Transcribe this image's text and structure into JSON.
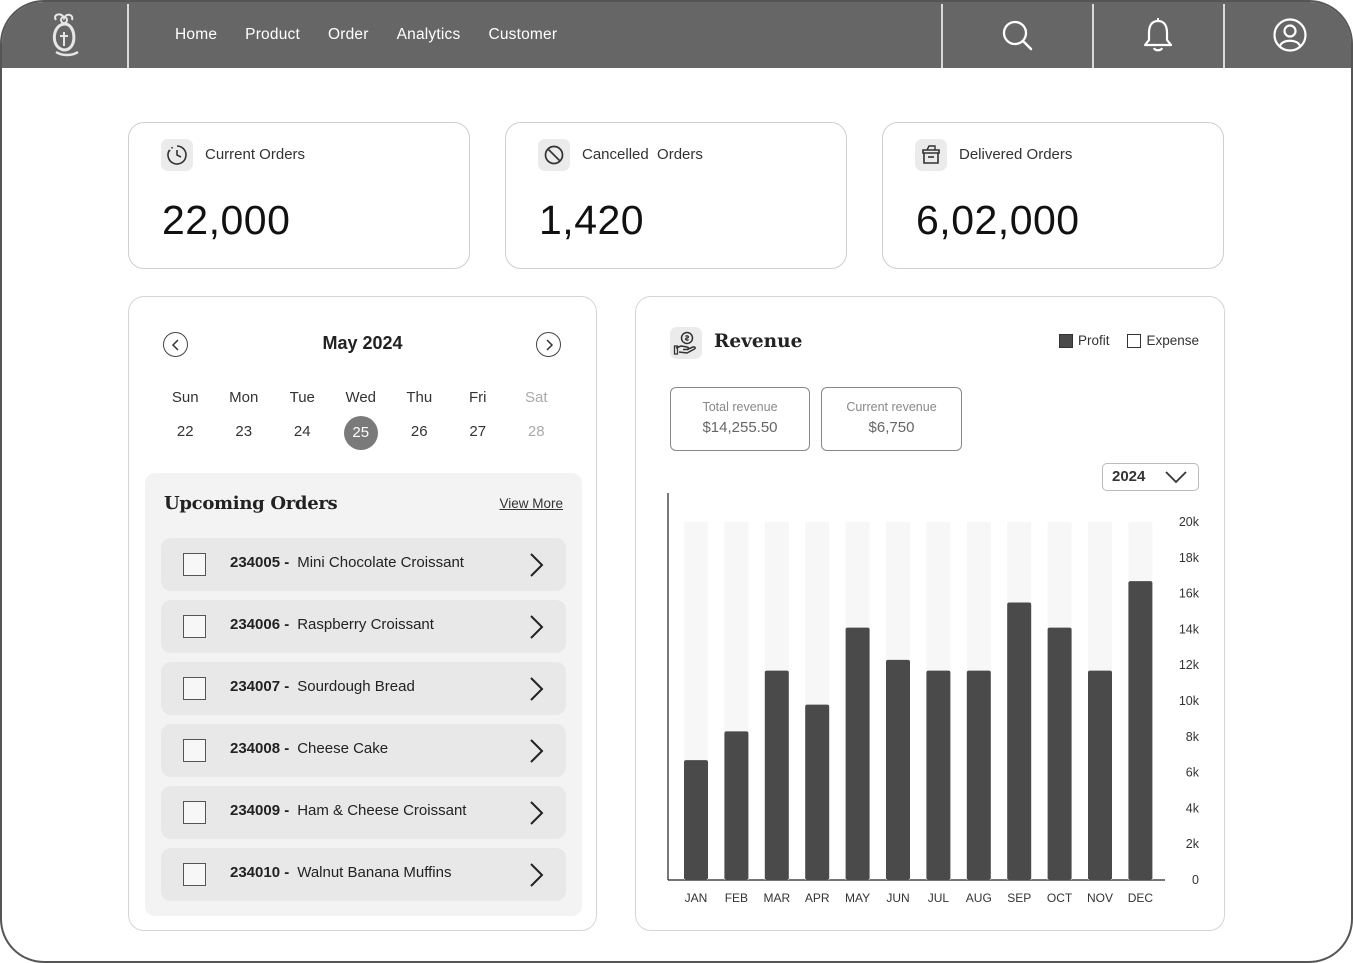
{
  "nav": {
    "links": [
      "Home",
      "Product",
      "Order",
      "Analytics",
      "Customer"
    ],
    "icons": [
      "logo-icon",
      "search-icon",
      "bell-icon",
      "user-icon"
    ],
    "bg_color": "#666666"
  },
  "stats": [
    {
      "label": "Current Orders",
      "value": "22,000",
      "icon": "clock-icon"
    },
    {
      "label": "Cancelled  Orders",
      "value": "1,420",
      "icon": "cancel-icon"
    },
    {
      "label": "Delivered Orders",
      "value": "6,02,000",
      "icon": "box-icon"
    }
  ],
  "calendar": {
    "month": "May 2024",
    "weekdays": [
      "Sun",
      "Mon",
      "Tue",
      "Wed",
      "Thu",
      "Fri",
      "Sat"
    ],
    "dates": [
      "22",
      "23",
      "24",
      "25",
      "26",
      "27",
      "28"
    ],
    "selected": "25"
  },
  "upcoming": {
    "title": "Upcoming Orders",
    "view_more": "View More",
    "orders": [
      {
        "id": "234005 -",
        "name": "Mini Chocolate Croissant"
      },
      {
        "id": "234006 -",
        "name": "Raspberry Croissant"
      },
      {
        "id": "234007 -",
        "name": "Sourdough Bread"
      },
      {
        "id": "234008 -",
        "name": "Cheese Cake"
      },
      {
        "id": "234009 -",
        "name": "Ham & Cheese Croissant"
      },
      {
        "id": "234010 -",
        "name": "Walnut Banana Muffins"
      }
    ]
  },
  "revenue": {
    "title": "Revenue",
    "legend": [
      "Profit",
      "Expense"
    ],
    "total_label": "Total revenue",
    "total_value": "$14,255.50",
    "current_label": "Current revenue",
    "current_value": "$6,750",
    "year": "2024"
  },
  "chart_data": {
    "type": "bar",
    "categories": [
      "JAN",
      "FEB",
      "MAR",
      "APR",
      "MAY",
      "JUN",
      "JUL",
      "AUG",
      "SEP",
      "OCT",
      "NOV",
      "DEC"
    ],
    "series": [
      {
        "name": "Profit",
        "values": [
          6700,
          8300,
          11700,
          9800,
          14100,
          12300,
          11700,
          11700,
          15500,
          14100,
          11700,
          16700
        ],
        "color": "#4a4a4a"
      },
      {
        "name": "Expense",
        "values": [
          20000,
          20000,
          20000,
          20000,
          20000,
          20000,
          20000,
          20000,
          20000,
          20000,
          20000,
          20000
        ],
        "color": "#f7f7f7"
      }
    ],
    "y_ticks": [
      "20k",
      "18k",
      "16k",
      "14k",
      "12k",
      "10k",
      "8k",
      "6k",
      "4k",
      "2k",
      "0"
    ],
    "ylim": [
      0,
      20000
    ],
    "y_axis_side": "right",
    "grid": false
  }
}
